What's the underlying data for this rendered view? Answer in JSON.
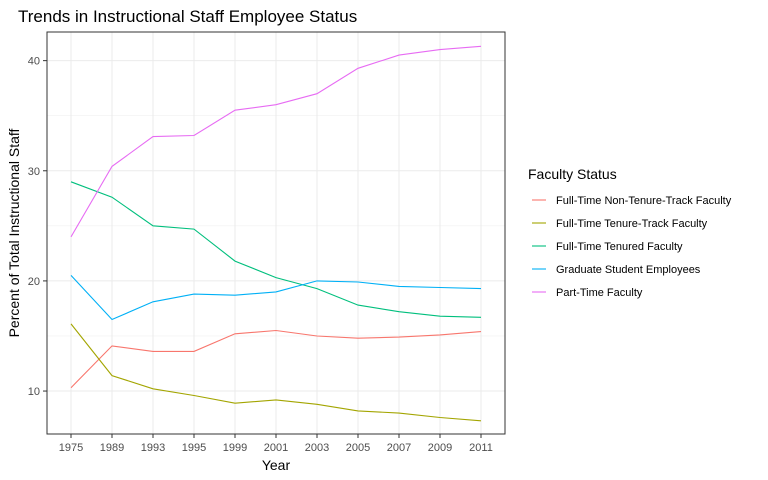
{
  "chart_data": {
    "type": "line",
    "title": "Trends in Instructional Staff Employee Status",
    "xlabel": "Year",
    "ylabel": "Percent of Total Instructional Staff",
    "x": [
      "1975",
      "1989",
      "1993",
      "1995",
      "1999",
      "2001",
      "2003",
      "2005",
      "2007",
      "2009",
      "2011"
    ],
    "yticks": [
      10,
      20,
      30,
      40
    ],
    "ylim": [
      6.1,
      42.6
    ],
    "grid": true,
    "legend": {
      "title": "Faculty Status",
      "position": "right"
    },
    "series": [
      {
        "name": "Full-Time Non-Tenure-Track Faculty",
        "color": "#F8766D",
        "values": [
          10.3,
          14.1,
          13.6,
          13.6,
          15.2,
          15.5,
          15.0,
          14.8,
          14.9,
          15.1,
          15.4
        ]
      },
      {
        "name": "Full-Time Tenure-Track Faculty",
        "color": "#A3A500",
        "values": [
          16.1,
          11.4,
          10.2,
          9.6,
          8.9,
          9.2,
          8.8,
          8.2,
          8.0,
          7.6,
          7.3
        ]
      },
      {
        "name": "Full-Time Tenured Faculty",
        "color": "#00BF7D",
        "values": [
          29.0,
          27.6,
          25.0,
          24.7,
          21.8,
          20.3,
          19.3,
          17.8,
          17.2,
          16.8,
          16.7
        ]
      },
      {
        "name": "Graduate Student Employees",
        "color": "#00B0F6",
        "values": [
          20.5,
          16.5,
          18.1,
          18.8,
          18.7,
          19.0,
          20.0,
          19.9,
          19.5,
          19.4,
          19.3
        ]
      },
      {
        "name": "Part-Time Faculty",
        "color": "#E76BF3",
        "values": [
          24.0,
          30.4,
          33.1,
          33.2,
          35.5,
          36.0,
          37.0,
          39.3,
          40.5,
          41.0,
          41.3
        ]
      }
    ]
  }
}
